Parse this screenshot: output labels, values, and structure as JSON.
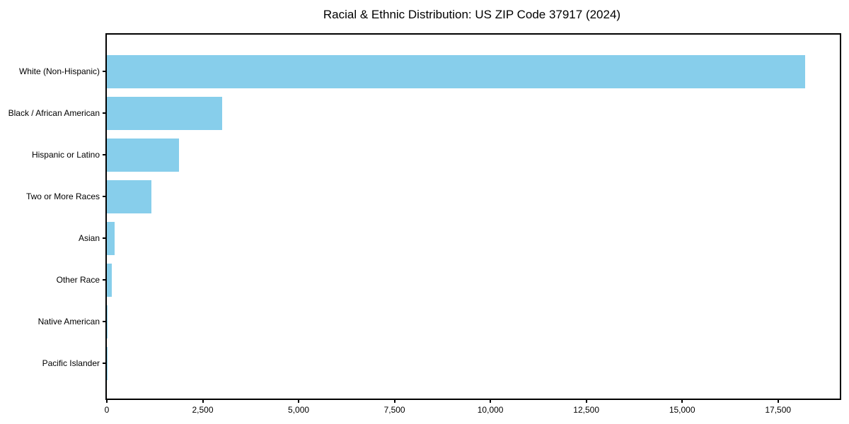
{
  "chart_data": {
    "type": "bar",
    "orientation": "horizontal",
    "title": "Racial & Ethnic Distribution: US ZIP Code 37917 (2024)",
    "categories": [
      "White (Non-Hispanic)",
      "Black / African American",
      "Hispanic or Latino",
      "Two or More Races",
      "Asian",
      "Other Race",
      "Native American",
      "Pacific Islander"
    ],
    "values": [
      18200,
      3000,
      1880,
      1170,
      200,
      130,
      20,
      5
    ],
    "xlabel": "",
    "ylabel": "",
    "xlim": [
      0,
      19110
    ],
    "xticks": [
      0,
      2500,
      5000,
      7500,
      10000,
      12500,
      15000,
      17500
    ],
    "xtick_labels": [
      "0",
      "2,500",
      "5,000",
      "7,500",
      "10,000",
      "12,500",
      "15,000",
      "17,500"
    ],
    "bar_color": "#87CEEB",
    "axis_color": "#000000",
    "text_color": "#000000",
    "grid": false,
    "legend_position": "none"
  }
}
